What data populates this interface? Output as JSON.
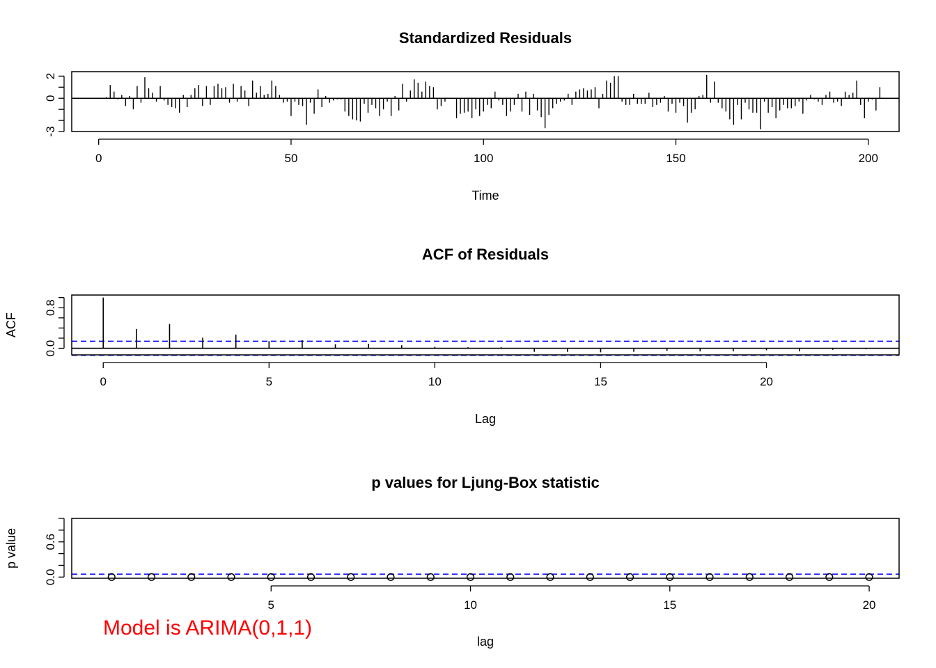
{
  "chart_data": [
    {
      "type": "bar",
      "title": "Standardized Residuals",
      "xlabel": "Time",
      "ylabel": "",
      "xlim": [
        -7,
        208
      ],
      "ylim": [
        -3,
        2.4
      ],
      "xticks": [
        0,
        50,
        100,
        150,
        200
      ],
      "xtick_labels": [
        "0",
        "50",
        "100",
        "150",
        "200"
      ],
      "yticks": [
        -3,
        -2,
        -1,
        0,
        1,
        2
      ],
      "ytick_labels": [
        "-3",
        "",
        "",
        "0",
        "",
        "2"
      ],
      "x_start": 1,
      "values": [
        0.05,
        0.1,
        1.2,
        0.6,
        -0.1,
        0.3,
        -0.7,
        0.2,
        -1.0,
        1.1,
        -0.4,
        1.9,
        0.9,
        0.5,
        -0.3,
        1.1,
        -0.2,
        -0.6,
        -0.8,
        -0.9,
        -1.3,
        0.3,
        -0.8,
        0.3,
        0.9,
        1.2,
        -0.7,
        1.1,
        -0.6,
        1.1,
        1.3,
        0.9,
        1.0,
        -0.4,
        1.3,
        -0.3,
        1.1,
        0.7,
        -0.7,
        1.6,
        0.5,
        1.1,
        0.3,
        0.4,
        1.6,
        1.1,
        0.3,
        -0.4,
        -0.3,
        -1.6,
        -0.3,
        -0.6,
        -0.7,
        -2.4,
        -0.4,
        -1.4,
        0.8,
        -0.8,
        0.2,
        -0.4,
        -0.2,
        -0.1,
        -0.1,
        -1.2,
        -1.6,
        -1.9,
        -2.0,
        -2.1,
        -0.5,
        -1.3,
        -0.6,
        -0.9,
        -1.6,
        -1.0,
        -0.3,
        -1.6,
        0.2,
        -1.1,
        1.3,
        -0.3,
        0.7,
        1.7,
        1.4,
        0.6,
        1.5,
        1.1,
        1.0,
        -1.0,
        -0.7,
        -0.3,
        0.0,
        0.0,
        -1.8,
        -1.4,
        -1.3,
        -1.2,
        -1.8,
        -1.0,
        -1.6,
        -1.2,
        -0.6,
        -0.9,
        0.6,
        -0.2,
        -0.6,
        -1.6,
        -1.2,
        -0.6,
        0.4,
        -1.2,
        0.6,
        -1.5,
        0.4,
        -1.1,
        -1.7,
        -2.7,
        -1.5,
        -0.9,
        -0.5,
        -0.3,
        -0.2,
        0.4,
        -0.6,
        0.6,
        0.8,
        0.9,
        0.7,
        0.8,
        1.0,
        -0.9,
        0.4,
        1.6,
        1.4,
        2.0,
        2.0,
        -0.3,
        -0.6,
        -0.6,
        0.4,
        -0.5,
        -0.5,
        -0.5,
        0.5,
        -0.8,
        -0.6,
        -0.4,
        0.2,
        -1.2,
        -0.5,
        -1.3,
        -0.4,
        -0.7,
        -2.2,
        -1.3,
        -1.0,
        0.2,
        0.3,
        2.1,
        -0.4,
        1.5,
        -0.4,
        -0.9,
        -1.2,
        -1.9,
        -2.4,
        -0.6,
        -1.9,
        -0.4,
        -1.0,
        -1.3,
        -1.3,
        -2.8,
        -0.3,
        -1.3,
        -0.8,
        -1.8,
        -1.1,
        -0.6,
        -0.9,
        -0.9,
        -0.7,
        -0.3,
        -1.4,
        -0.2,
        0.3,
        -0.1,
        -0.3,
        -0.6,
        0.3,
        0.6,
        -0.4,
        -0.3,
        -0.7,
        0.6,
        0.3,
        0.5,
        1.6,
        -0.6,
        -1.8,
        -0.3,
        -0.1,
        -1.1,
        1.0
      ]
    },
    {
      "type": "bar",
      "title": "ACF of Residuals",
      "xlabel": "Lag",
      "ylabel": "ACF",
      "xlim": [
        -0.95,
        24.0
      ],
      "ylim": [
        -0.13,
        1.05
      ],
      "xticks": [
        0,
        5,
        10,
        15,
        20
      ],
      "xtick_labels": [
        "0",
        "5",
        "10",
        "15",
        "20"
      ],
      "yticks": [
        0.0,
        0.2,
        0.4,
        0.6,
        0.8,
        1.0
      ],
      "ytick_labels": [
        "0.0",
        "",
        "",
        "",
        "0.8",
        ""
      ],
      "lags": [
        0,
        1,
        2,
        3,
        4,
        5,
        6,
        7,
        8,
        9,
        10,
        11,
        12,
        13,
        14,
        15,
        16,
        17,
        18,
        19,
        20,
        21,
        22,
        23
      ],
      "values": [
        1.0,
        0.38,
        0.48,
        0.21,
        0.27,
        0.14,
        0.16,
        0.08,
        0.09,
        0.06,
        0.03,
        0.02,
        0.02,
        -0.07,
        -0.07,
        -0.08,
        -0.07,
        -0.05,
        -0.06,
        -0.06,
        -0.04,
        -0.06,
        -0.03,
        -0.02
      ],
      "conf_limits": [
        0.139,
        -0.139
      ],
      "conf_color": "#0000ff"
    },
    {
      "type": "scatter",
      "title": "p values for Ljung-Box statistic",
      "xlabel": "lag",
      "ylabel": "p value",
      "xlim": [
        0.0,
        20.75
      ],
      "ylim": [
        -0.02,
        1.0
      ],
      "xticks": [
        5,
        10,
        15,
        20
      ],
      "xtick_labels": [
        "5",
        "10",
        "15",
        "20"
      ],
      "yticks": [
        0.0,
        0.2,
        0.4,
        0.6,
        0.8,
        1.0
      ],
      "ytick_labels": [
        "0.0",
        "",
        "",
        "0.6",
        "",
        ""
      ],
      "x": [
        1,
        2,
        3,
        4,
        5,
        6,
        7,
        8,
        9,
        10,
        11,
        12,
        13,
        14,
        15,
        16,
        17,
        18,
        19,
        20
      ],
      "values": [
        0,
        0,
        0,
        0,
        0,
        0,
        0,
        0,
        0,
        0,
        0,
        0,
        0,
        0,
        0,
        0,
        0,
        0,
        0,
        0
      ],
      "reference_line": 0.05,
      "reference_color": "#0000ff"
    }
  ],
  "annotation": {
    "text": "Model is ARIMA(0,1,1)",
    "color": "#ff0000"
  }
}
